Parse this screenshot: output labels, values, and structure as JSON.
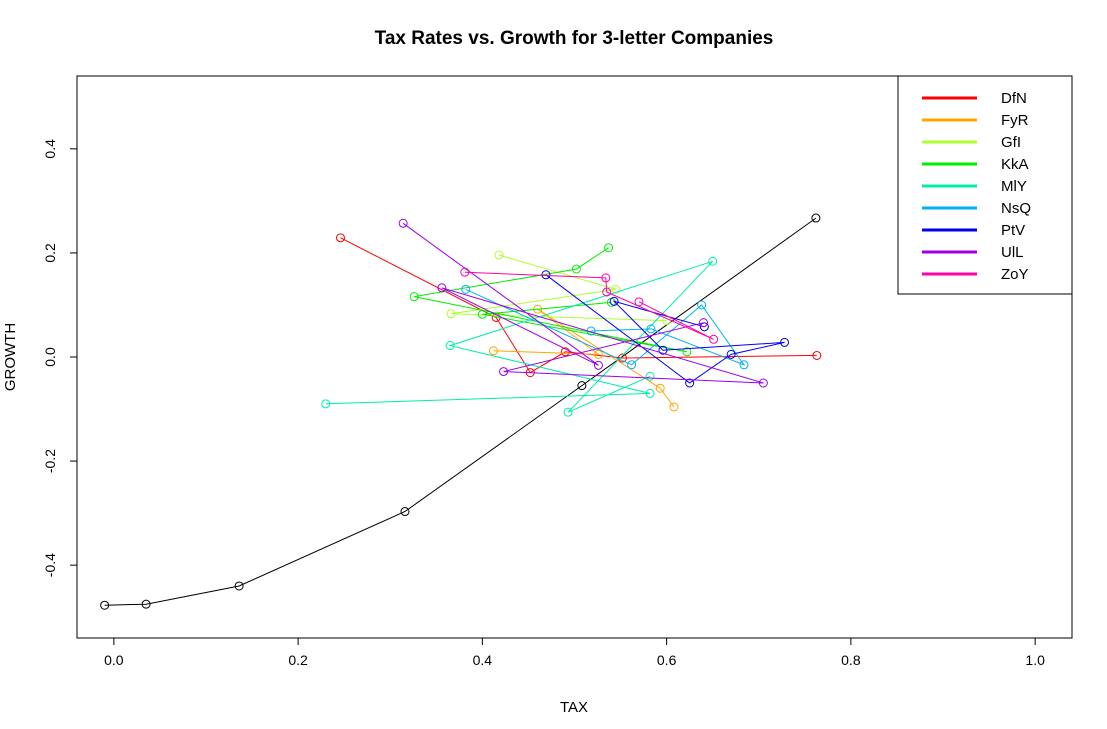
{
  "chart_data": {
    "type": "line",
    "title": "Tax Rates vs. Growth for 3-letter Companies",
    "xlabel": "TAX",
    "ylabel": "GROWTH",
    "xlim": [
      -0.04,
      1.04
    ],
    "ylim": [
      -0.54,
      0.54
    ],
    "x_ticks": [
      0.0,
      0.2,
      0.4,
      0.6,
      0.8,
      1.0
    ],
    "x_tick_labels": [
      "0.0",
      "0.2",
      "0.4",
      "0.6",
      "0.8",
      "1.0"
    ],
    "y_ticks": [
      -0.4,
      -0.2,
      0.0,
      0.2,
      0.4
    ],
    "y_tick_labels": [
      "-0.4",
      "-0.2",
      "0.0",
      "0.2",
      "0.4"
    ],
    "grid": false,
    "legend_position": "top-right",
    "series": [
      {
        "name": "",
        "color": "#000000",
        "points": [
          [
            -0.01,
            -0.477
          ],
          [
            0.035,
            -0.475
          ],
          [
            0.136,
            -0.44
          ],
          [
            0.316,
            -0.297
          ],
          [
            0.508,
            -0.055
          ],
          [
            0.762,
            0.267
          ]
        ]
      },
      {
        "name": "DfN",
        "color": "#FF0000",
        "points": [
          [
            0.246,
            0.229
          ],
          [
            0.415,
            0.076
          ],
          [
            0.452,
            -0.03
          ],
          [
            0.49,
            0.01
          ],
          [
            0.552,
            -0.002
          ],
          [
            0.763,
            0.003
          ]
        ]
      },
      {
        "name": "FyR",
        "color": "#FFA500",
        "points": [
          [
            0.412,
            0.012
          ],
          [
            0.526,
            0.005
          ],
          [
            0.46,
            0.092
          ],
          [
            0.593,
            -0.06
          ],
          [
            0.608,
            -0.096
          ]
        ]
      },
      {
        "name": "GfI",
        "color": "#ADFF2F",
        "points": [
          [
            0.418,
            0.196
          ],
          [
            0.545,
            0.13
          ],
          [
            0.366,
            0.083
          ],
          [
            0.6,
            0.07
          ]
        ]
      },
      {
        "name": "KkA",
        "color": "#00EE00",
        "points": [
          [
            0.537,
            0.21
          ],
          [
            0.502,
            0.169
          ],
          [
            0.326,
            0.116
          ],
          [
            0.622,
            0.01
          ],
          [
            0.4,
            0.082
          ],
          [
            0.54,
            0.105
          ]
        ]
      },
      {
        "name": "MlY",
        "color": "#00EEAA",
        "points": [
          [
            0.23,
            -0.09
          ],
          [
            0.582,
            -0.07
          ],
          [
            0.365,
            0.022
          ],
          [
            0.65,
            0.184
          ],
          [
            0.493,
            -0.106
          ],
          [
            0.582,
            -0.037
          ]
        ]
      },
      {
        "name": "NsQ",
        "color": "#00B2EE",
        "points": [
          [
            0.382,
            0.13
          ],
          [
            0.562,
            -0.015
          ],
          [
            0.638,
            0.1
          ],
          [
            0.684,
            -0.015
          ],
          [
            0.583,
            0.054
          ],
          [
            0.518,
            0.05
          ]
        ]
      },
      {
        "name": "PtV",
        "color": "#0000EE",
        "points": [
          [
            0.469,
            0.158
          ],
          [
            0.625,
            -0.05
          ],
          [
            0.67,
            0.005
          ],
          [
            0.728,
            0.028
          ],
          [
            0.596,
            0.013
          ],
          [
            0.543,
            0.107
          ],
          [
            0.641,
            0.058
          ]
        ]
      },
      {
        "name": "UlL",
        "color": "#9B00EE",
        "points": [
          [
            0.314,
            0.257
          ],
          [
            0.526,
            -0.016
          ],
          [
            0.356,
            0.133
          ],
          [
            0.705,
            -0.05
          ],
          [
            0.423,
            -0.028
          ],
          [
            0.64,
            0.066
          ]
        ]
      },
      {
        "name": "ZoY",
        "color": "#FF00AA",
        "points": [
          [
            0.381,
            0.163
          ],
          [
            0.534,
            0.152
          ],
          [
            0.535,
            0.125
          ],
          [
            0.651,
            0.034
          ],
          [
            0.57,
            0.106
          ]
        ]
      }
    ]
  }
}
